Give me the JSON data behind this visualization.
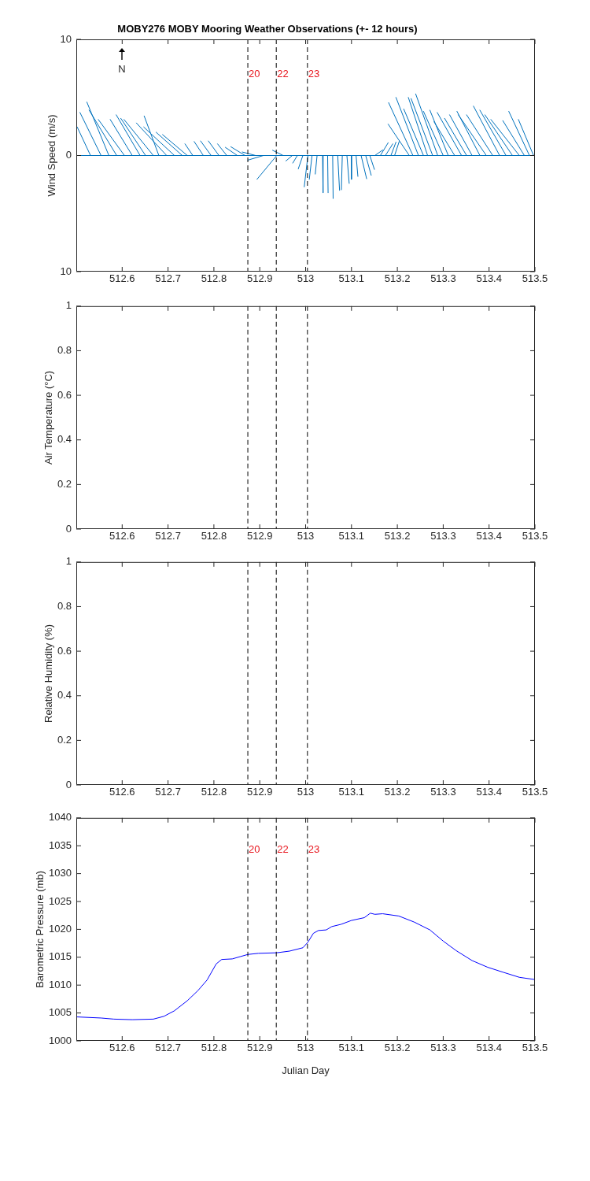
{
  "chart_data": [
    {
      "type": "line",
      "title": "MOBY276 MOBY Mooring Weather Observations (+- 12 hours)",
      "ylabel": "Wind Speed (m/s)",
      "annotations": [
        "N",
        {
          "text": "20",
          "x": 512.874,
          "y": 7
        },
        {
          "text": "22",
          "x": 512.936,
          "y": 7
        },
        {
          "text": "23",
          "x": 513.004,
          "y": 7
        }
      ],
      "marker": "none",
      "grid": false,
      "legend": false,
      "xlim": [
        512.5,
        513.5
      ],
      "xticks": [
        512.6,
        512.7,
        512.8,
        512.9,
        513,
        513.1,
        513.2,
        513.3,
        513.4,
        513.5
      ],
      "ylim": [
        -10,
        10
      ],
      "yticks": [
        {
          "value": -10,
          "label": "10"
        },
        0,
        10
      ],
      "ref_lines": [
        {
          "axis": "x",
          "value": 512.874,
          "color": "#000000",
          "line_style": "dashed"
        },
        {
          "axis": "x",
          "value": 512.936,
          "color": "#000000",
          "line_style": "dashed"
        },
        {
          "axis": "x",
          "value": 513.004,
          "color": "#000000",
          "line_style": "dashed"
        }
      ],
      "series": [
        {
          "color": "#0072bd",
          "x": [
            512.5,
            513.5
          ],
          "values": [
            0,
            0
          ]
        },
        {
          "color": "#0072bd",
          "x": [
            512.531,
            512.502
          ],
          "values": [
            0,
            2.45
          ]
        },
        {
          "color": "#0072bd",
          "x": [
            512.554,
            512.508
          ],
          "values": [
            0,
            3.7
          ]
        },
        {
          "color": "#0072bd",
          "x": [
            512.571,
            512.523
          ],
          "values": [
            0,
            4.6
          ]
        },
        {
          "color": "#0072bd",
          "x": [
            512.588,
            512.528
          ],
          "values": [
            0,
            3.9
          ]
        },
        {
          "color": "#0072bd",
          "x": [
            512.605,
            512.548
          ],
          "values": [
            0,
            3.1
          ]
        },
        {
          "color": "#0072bd",
          "x": [
            512.622,
            512.574
          ],
          "values": [
            0,
            3.1
          ]
        },
        {
          "color": "#0072bd",
          "x": [
            512.639,
            512.587
          ],
          "values": [
            0,
            3.5
          ]
        },
        {
          "color": "#0072bd",
          "x": [
            512.651,
            512.597
          ],
          "values": [
            0,
            3.2
          ]
        },
        {
          "color": "#0072bd",
          "x": [
            512.668,
            512.604
          ],
          "values": [
            0,
            3.1
          ]
        },
        {
          "color": "#0072bd",
          "x": [
            512.68,
            512.648
          ],
          "values": [
            0,
            3.4
          ]
        },
        {
          "color": "#0072bd",
          "x": [
            512.697,
            512.631
          ],
          "values": [
            0,
            2.8
          ]
        },
        {
          "color": "#0072bd",
          "x": [
            512.714,
            512.647
          ],
          "values": [
            0,
            2.45
          ]
        },
        {
          "color": "#0072bd",
          "x": [
            512.731,
            512.674
          ],
          "values": [
            0,
            2.0
          ]
        },
        {
          "color": "#0072bd",
          "x": [
            512.742,
            512.688
          ],
          "values": [
            0,
            1.8
          ]
        },
        {
          "color": "#0072bd",
          "x": [
            512.754,
            512.737
          ],
          "values": [
            0,
            1.0
          ]
        },
        {
          "color": "#0072bd",
          "x": [
            512.777,
            512.757
          ],
          "values": [
            0,
            1.2
          ]
        },
        {
          "color": "#0072bd",
          "x": [
            512.794,
            512.771
          ],
          "values": [
            0,
            1.25
          ]
        },
        {
          "color": "#0072bd",
          "x": [
            512.811,
            512.788
          ],
          "values": [
            0,
            1.25
          ]
        },
        {
          "color": "#0072bd",
          "x": [
            512.828,
            512.808
          ],
          "values": [
            0,
            1.0
          ]
        },
        {
          "color": "#0072bd",
          "x": [
            512.851,
            512.825
          ],
          "values": [
            0,
            0.7
          ]
        },
        {
          "color": "#0072bd",
          "x": [
            512.868,
            512.837
          ],
          "values": [
            0,
            0.75
          ]
        },
        {
          "color": "#0072bd",
          "x": [
            512.891,
            512.862
          ],
          "values": [
            0,
            0.3
          ]
        },
        {
          "color": "#0072bd",
          "x": [
            512.908,
            512.874
          ],
          "values": [
            0,
            -0.4
          ]
        },
        {
          "color": "#0072bd",
          "x": [
            512.937,
            512.894
          ],
          "values": [
            0,
            -2.05
          ]
        },
        {
          "color": "#0072bd",
          "x": [
            512.951,
            512.928
          ],
          "values": [
            0,
            0.45
          ]
        },
        {
          "color": "#0072bd",
          "x": [
            512.971,
            512.957
          ],
          "values": [
            0,
            -0.47
          ]
        },
        {
          "color": "#0072bd",
          "x": [
            512.982,
            512.972
          ],
          "values": [
            0,
            -0.65
          ]
        },
        {
          "color": "#0072bd",
          "x": [
            512.994,
            512.984
          ],
          "values": [
            0,
            -1.15
          ]
        },
        {
          "color": "#0072bd",
          "x": [
            513.005,
            512.997
          ],
          "values": [
            0,
            -2.7
          ]
        },
        {
          "color": "#0072bd",
          "x": [
            513.014,
            513.008
          ],
          "values": [
            0,
            -2.05
          ]
        },
        {
          "color": "#0072bd",
          "x": [
            513.025,
            513.021
          ],
          "values": [
            0,
            -1.6
          ]
        },
        {
          "color": "#0072bd",
          "x": [
            513.037,
            513.038
          ],
          "values": [
            0,
            -3.2
          ]
        },
        {
          "color": "#0072bd",
          "x": [
            513.048,
            513.049
          ],
          "values": [
            0,
            -3.2
          ]
        },
        {
          "color": "#0072bd",
          "x": [
            513.059,
            513.06
          ],
          "values": [
            0,
            -3.7
          ]
        },
        {
          "color": "#0072bd",
          "x": [
            513.07,
            513.074
          ],
          "values": [
            0,
            -3.0
          ]
        },
        {
          "color": "#0072bd",
          "x": [
            513.08,
            513.078
          ],
          "values": [
            0,
            -2.95
          ]
        },
        {
          "color": "#0072bd",
          "x": [
            513.09,
            513.095
          ],
          "values": [
            0,
            -2.4
          ]
        },
        {
          "color": "#0072bd",
          "x": [
            513.1,
            513.1
          ],
          "values": [
            0,
            -2.05
          ]
        },
        {
          "color": "#0072bd",
          "x": [
            513.11,
            513.114
          ],
          "values": [
            0,
            -1.8
          ]
        },
        {
          "color": "#0072bd",
          "x": [
            513.121,
            513.133
          ],
          "values": [
            0,
            -2.0
          ]
        },
        {
          "color": "#0072bd",
          "x": [
            513.131,
            513.143
          ],
          "values": [
            0,
            -1.7
          ]
        },
        {
          "color": "#0072bd",
          "x": [
            513.14,
            513.15
          ],
          "values": [
            0,
            -1.2
          ]
        },
        {
          "color": "#0072bd",
          "x": [
            513.151,
            513.168
          ],
          "values": [
            0,
            0.47
          ]
        },
        {
          "color": "#0072bd",
          "x": [
            513.163,
            513.18
          ],
          "values": [
            0,
            1.1
          ]
        },
        {
          "color": "#0072bd",
          "x": [
            513.174,
            513.19
          ],
          "values": [
            0,
            1.0
          ]
        },
        {
          "color": "#0072bd",
          "x": [
            513.186,
            513.197
          ],
          "values": [
            0,
            1.15
          ]
        },
        {
          "color": "#0072bd",
          "x": [
            513.194,
            513.204
          ],
          "values": [
            0,
            1.2
          ]
        },
        {
          "color": "#0072bd",
          "x": [
            513.226,
            513.18
          ],
          "values": [
            0,
            2.7
          ]
        },
        {
          "color": "#0072bd",
          "x": [
            513.234,
            513.181
          ],
          "values": [
            0,
            4.55
          ]
        },
        {
          "color": "#0072bd",
          "x": [
            513.246,
            513.197
          ],
          "values": [
            0,
            5.0
          ]
        },
        {
          "color": "#0072bd",
          "x": [
            513.257,
            513.214
          ],
          "values": [
            0,
            4.0
          ]
        },
        {
          "color": "#0072bd",
          "x": [
            513.266,
            513.224
          ],
          "values": [
            0,
            5.0
          ]
        },
        {
          "color": "#0072bd",
          "x": [
            513.277,
            513.23
          ],
          "values": [
            0,
            4.9
          ]
        },
        {
          "color": "#0072bd",
          "x": [
            513.288,
            513.24
          ],
          "values": [
            0,
            5.3
          ]
        },
        {
          "color": "#0072bd",
          "x": [
            513.3,
            513.257
          ],
          "values": [
            0,
            3.8
          ]
        },
        {
          "color": "#0072bd",
          "x": [
            513.311,
            513.271
          ],
          "values": [
            0,
            3.9
          ]
        },
        {
          "color": "#0072bd",
          "x": [
            513.325,
            513.28
          ],
          "values": [
            0,
            2.9
          ]
        },
        {
          "color": "#0072bd",
          "x": [
            513.34,
            513.287
          ],
          "values": [
            0,
            3.7
          ]
        },
        {
          "color": "#0072bd",
          "x": [
            513.351,
            513.303
          ],
          "values": [
            0,
            3.2
          ]
        },
        {
          "color": "#0072bd",
          "x": [
            513.363,
            513.314
          ],
          "values": [
            0,
            3.5
          ]
        },
        {
          "color": "#0072bd",
          "x": [
            513.38,
            513.33
          ],
          "values": [
            0,
            3.8
          ]
        },
        {
          "color": "#0072bd",
          "x": [
            513.394,
            513.333
          ],
          "values": [
            0,
            3.5
          ]
        },
        {
          "color": "#0072bd",
          "x": [
            513.408,
            513.351
          ],
          "values": [
            0,
            3.5
          ]
        },
        {
          "color": "#0072bd",
          "x": [
            513.423,
            513.366
          ],
          "values": [
            0,
            4.25
          ]
        },
        {
          "color": "#0072bd",
          "x": [
            513.437,
            513.38
          ],
          "values": [
            0,
            3.9
          ]
        },
        {
          "color": "#0072bd",
          "x": [
            513.451,
            513.391
          ],
          "values": [
            0,
            3.5
          ]
        },
        {
          "color": "#0072bd",
          "x": [
            513.466,
            513.404
          ],
          "values": [
            0,
            3.1
          ]
        },
        {
          "color": "#0072bd",
          "x": [
            513.477,
            513.43
          ],
          "values": [
            0,
            3.0
          ]
        },
        {
          "color": "#0072bd",
          "x": [
            513.488,
            513.443
          ],
          "values": [
            0,
            3.8
          ]
        },
        {
          "color": "#0072bd",
          "x": [
            513.497,
            513.464
          ],
          "values": [
            0,
            3.1
          ]
        }
      ]
    },
    {
      "type": "line",
      "ylabel": "Air Temperature (°C)",
      "grid": false,
      "legend": false,
      "xlim": [
        512.5,
        513.5
      ],
      "xticks": [
        512.6,
        512.7,
        512.8,
        512.9,
        513,
        513.1,
        513.2,
        513.3,
        513.4,
        513.5
      ],
      "ylim": [
        0,
        1
      ],
      "yticks": [
        0,
        0.2,
        0.4,
        0.6,
        0.8,
        1
      ],
      "ref_lines": [
        {
          "axis": "x",
          "value": 512.874,
          "color": "#000000",
          "line_style": "dashed"
        },
        {
          "axis": "x",
          "value": 512.936,
          "color": "#000000",
          "line_style": "dashed"
        },
        {
          "axis": "x",
          "value": 513.004,
          "color": "#000000",
          "line_style": "dashed"
        }
      ]
    },
    {
      "type": "line",
      "ylabel": "Relative Humidity (%)",
      "grid": false,
      "legend": false,
      "xlim": [
        512.5,
        513.5
      ],
      "xticks": [
        512.6,
        512.7,
        512.8,
        512.9,
        513,
        513.1,
        513.2,
        513.3,
        513.4,
        513.5
      ],
      "ylim": [
        0,
        1
      ],
      "yticks": [
        0,
        0.2,
        0.4,
        0.6,
        0.8,
        1
      ],
      "ref_lines": [
        {
          "axis": "x",
          "value": 512.874,
          "color": "#000000",
          "line_style": "dashed"
        },
        {
          "axis": "x",
          "value": 512.936,
          "color": "#000000",
          "line_style": "dashed"
        },
        {
          "axis": "x",
          "value": 513.004,
          "color": "#000000",
          "line_style": "dashed"
        }
      ]
    },
    {
      "type": "line",
      "xlabel": "Julian Day",
      "ylabel": "Barometric Pressure (mb)",
      "marker": "none",
      "grid": false,
      "legend": false,
      "xlim": [
        512.5,
        513.5
      ],
      "xticks": [
        512.6,
        512.7,
        512.8,
        512.9,
        513,
        513.1,
        513.2,
        513.3,
        513.4,
        513.5
      ],
      "ylim": [
        1000,
        1040
      ],
      "yticks": [
        1000,
        1005,
        1010,
        1015,
        1020,
        1025,
        1030,
        1035,
        1040
      ],
      "annotations": [
        {
          "text": "20",
          "x": 512.874,
          "y": 1034.2
        },
        {
          "text": "22",
          "x": 512.936,
          "y": 1034.2
        },
        {
          "text": "23",
          "x": 513.004,
          "y": 1034.2
        }
      ],
      "ref_lines": [
        {
          "axis": "x",
          "value": 512.874,
          "color": "#000000",
          "line_style": "dashed"
        },
        {
          "axis": "x",
          "value": 512.936,
          "color": "#000000",
          "line_style": "dashed"
        },
        {
          "axis": "x",
          "value": 513.004,
          "color": "#000000",
          "line_style": "dashed"
        }
      ],
      "series": [
        {
          "color": "#0000ff",
          "x": [
            512.5,
            512.554,
            512.582,
            512.622,
            512.668,
            512.691,
            512.714,
            512.742,
            512.765,
            512.785,
            512.805,
            512.817,
            512.84,
            512.857,
            512.874,
            512.897,
            512.937,
            512.965,
            512.994,
            513.005,
            513.017,
            513.028,
            513.045,
            513.057,
            513.077,
            513.1,
            513.128,
            513.141,
            513.151,
            513.168,
            513.203,
            513.237,
            513.271,
            513.3,
            513.328,
            513.363,
            513.397,
            513.431,
            513.466,
            513.5
          ],
          "values": [
            1004.3,
            1004.1,
            1003.9,
            1003.8,
            1003.9,
            1004.4,
            1005.4,
            1007.2,
            1009.0,
            1010.9,
            1013.8,
            1014.6,
            1014.7,
            1015.1,
            1015.5,
            1015.7,
            1015.8,
            1016.1,
            1016.7,
            1017.7,
            1019.3,
            1019.8,
            1019.9,
            1020.5,
            1020.9,
            1021.6,
            1022.1,
            1022.9,
            1022.7,
            1022.8,
            1022.4,
            1021.3,
            1019.9,
            1017.9,
            1016.2,
            1014.4,
            1013.2,
            1012.3,
            1011.4,
            1011.0
          ]
        }
      ]
    }
  ]
}
